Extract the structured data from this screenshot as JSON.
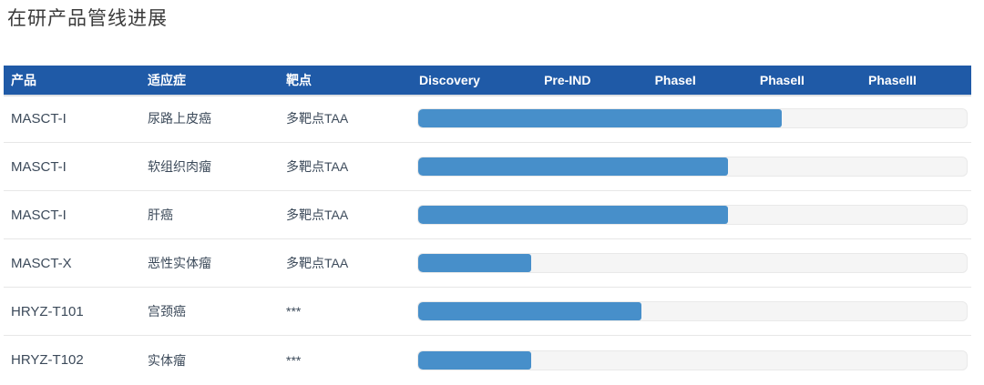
{
  "page_title": "在研产品管线进展",
  "colors": {
    "header_bg": "#1F5AA7",
    "header_text": "#FFFFFF",
    "bar_fill": "#478FCA",
    "track_bg": "#F5F5F5",
    "track_border": "#E9E9E9",
    "row_divider": "#E7E7E7",
    "row_text": "#3C4A5A",
    "title_text": "#3B3B3B"
  },
  "chart_data": {
    "type": "bar",
    "orientation": "horizontal",
    "title": "在研产品管线进展",
    "columns": {
      "product": "产品",
      "indication": "适应症",
      "target": "靶点"
    },
    "phases": [
      "Discovery",
      "Pre-IND",
      "PhaseI",
      "PhaseII",
      "PhaseIII"
    ],
    "xlim_pct": [
      0,
      100
    ],
    "grid": false,
    "legend": "none",
    "rows": [
      {
        "product": "MASCT-I",
        "indication": "尿路上皮癌",
        "target": "多靶点TAA",
        "progress_pct": 66.3,
        "phase_reached": "PhaseII"
      },
      {
        "product": "MASCT-I",
        "indication": "软组织肉瘤",
        "target": "多靶点TAA",
        "progress_pct": 56.5,
        "phase_reached": "PhaseI"
      },
      {
        "product": "MASCT-I",
        "indication": "肝癌",
        "target": "多靶点TAA",
        "progress_pct": 56.5,
        "phase_reached": "PhaseI"
      },
      {
        "product": "MASCT-X",
        "indication": "恶性实体瘤",
        "target": "多靶点TAA",
        "progress_pct": 20.6,
        "phase_reached": "Pre-IND"
      },
      {
        "product": "HRYZ-T101",
        "indication": "宫颈癌",
        "target": "***",
        "progress_pct": 40.7,
        "phase_reached": "PhaseI"
      },
      {
        "product": "HRYZ-T102",
        "indication": "实体瘤",
        "target": "***",
        "progress_pct": 20.6,
        "phase_reached": "Pre-IND"
      }
    ]
  }
}
